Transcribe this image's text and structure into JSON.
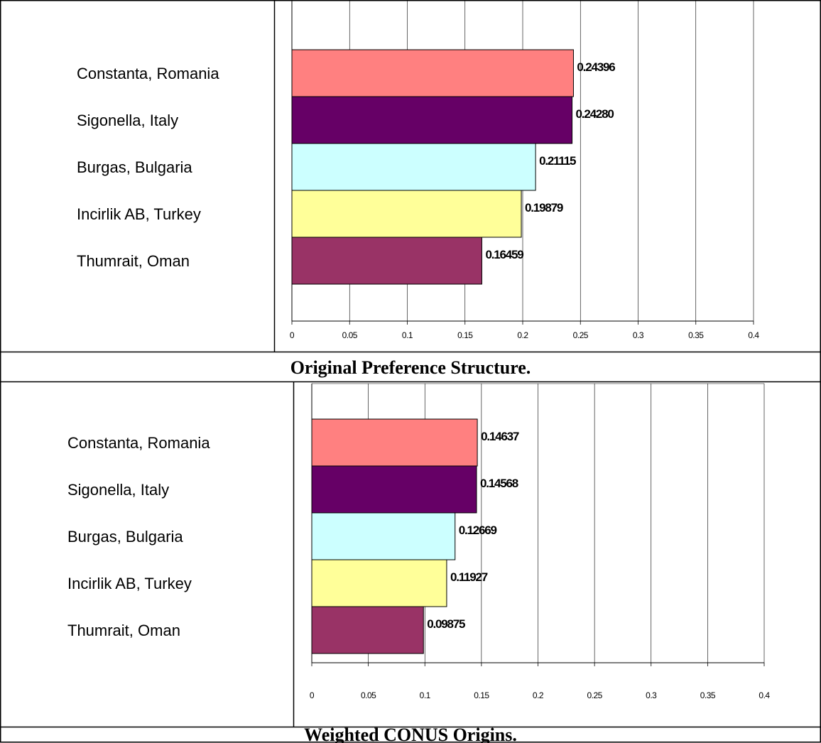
{
  "chart_data": [
    {
      "type": "bar",
      "orientation": "horizontal",
      "caption": "Original Preference Structure.",
      "categories": [
        "Constanta, Romania",
        "Sigonella, Italy",
        "Burgas, Bulgaria",
        "Incirlik AB, Turkey",
        "Thumrait, Oman"
      ],
      "values": [
        0.24396,
        0.2428,
        0.21115,
        0.19879,
        0.16459
      ],
      "value_labels": [
        "0.24396",
        "0.24280",
        "0.21115",
        "0.19879",
        "0.16459"
      ],
      "xticks": [
        "0",
        "0.05",
        "0.1",
        "0.15",
        "0.2",
        "0.25",
        "0.3",
        "0.35",
        "0.4"
      ],
      "xlim": [
        0,
        0.4
      ],
      "grid": true,
      "bar_colors": [
        "#ff8080",
        "#660066",
        "#ccffff",
        "#ffff99",
        "#993366"
      ]
    },
    {
      "type": "bar",
      "orientation": "horizontal",
      "caption": "Weighted CONUS Origins.",
      "categories": [
        "Constanta, Romania",
        "Sigonella, Italy",
        "Burgas, Bulgaria",
        "Incirlik AB, Turkey",
        "Thumrait, Oman"
      ],
      "values": [
        0.14637,
        0.14568,
        0.12669,
        0.11927,
        0.09875
      ],
      "value_labels": [
        "0.14637",
        "0.14568",
        "0.12669",
        "0.11927",
        "0.09875"
      ],
      "xticks": [
        "0",
        "0.05",
        "0.1",
        "0.15",
        "0.2",
        "0.25",
        "0.3",
        "0.35",
        "0.4"
      ],
      "xlim": [
        0,
        0.4
      ],
      "grid": true,
      "bar_colors": [
        "#ff8080",
        "#660066",
        "#ccffff",
        "#ffff99",
        "#993366"
      ]
    }
  ]
}
